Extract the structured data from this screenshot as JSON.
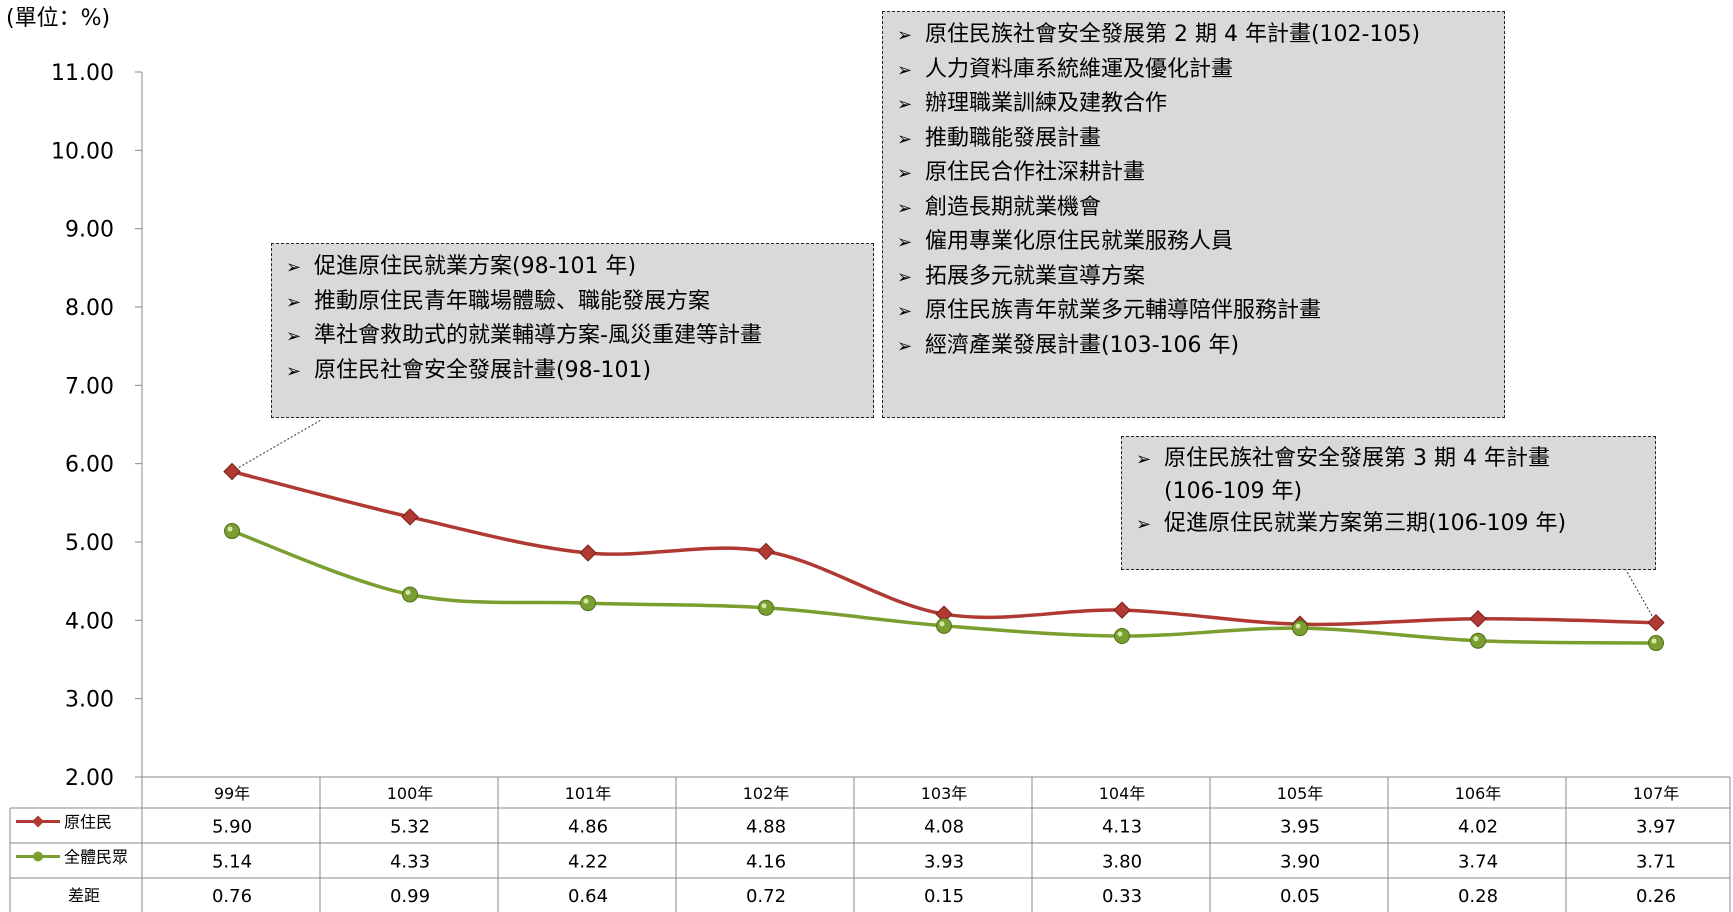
{
  "unit_label": "(單位：%)",
  "chart_data": {
    "type": "line",
    "categories": [
      "99年",
      "100年",
      "101年",
      "102年",
      "103年",
      "104年",
      "105年",
      "106年",
      "107年"
    ],
    "series": [
      {
        "name": "原住民",
        "values": [
          5.9,
          5.32,
          4.86,
          4.88,
          4.08,
          4.13,
          3.95,
          4.02,
          3.97
        ],
        "color": "#b03a33",
        "marker": "diamond"
      },
      {
        "name": "全體民眾",
        "values": [
          5.14,
          4.33,
          4.22,
          4.16,
          3.93,
          3.8,
          3.9,
          3.74,
          3.71
        ],
        "color": "#7a9e2f",
        "marker": "circle"
      }
    ],
    "table_rows": [
      {
        "label": "原住民",
        "values": [
          "5.90",
          "5.32",
          "4.86",
          "4.88",
          "4.08",
          "4.13",
          "3.95",
          "4.02",
          "3.97"
        ]
      },
      {
        "label": "全體民眾",
        "values": [
          "5.14",
          "4.33",
          "4.22",
          "4.16",
          "3.93",
          "3.80",
          "3.90",
          "3.74",
          "3.71"
        ]
      },
      {
        "label": "差距",
        "values": [
          "0.76",
          "0.99",
          "0.64",
          "0.72",
          "0.15",
          "0.33",
          "0.05",
          "0.28",
          "0.26"
        ]
      }
    ],
    "ylim": [
      2.0,
      11.0
    ],
    "yticks": [
      "2.00",
      "3.00",
      "4.00",
      "5.00",
      "6.00",
      "7.00",
      "8.00",
      "9.00",
      "10.00",
      "11.00"
    ],
    "grid": false
  },
  "annotations": [
    {
      "items": [
        "促進原住民就業方案(98-101 年)",
        "推動原住民青年職場體驗、職能發展方案",
        "準社會救助式的就業輔導方案-風災重建等計畫",
        "原住民社會安全發展計畫(98-101)"
      ]
    },
    {
      "items": [
        "原住民族社會安全發展第 2 期 4 年計畫(102-105)",
        "人力資料庫系統維運及優化計畫",
        "辦理職業訓練及建教合作",
        "推動職能發展計畫",
        "原住民合作社深耕計畫",
        "創造長期就業機會",
        "僱用專業化原住民就業服務人員",
        "拓展多元就業宣導方案",
        "原住民族青年就業多元輔導陪伴服務計畫",
        "經濟產業發展計畫(103-106 年)"
      ]
    },
    {
      "items": [
        "原住民族社會安全發展第 3 期 4 年計畫",
        "(106-109 年)",
        "促進原住民就業方案第三期(106-109 年)"
      ]
    }
  ],
  "arrow_glyph": "➢"
}
